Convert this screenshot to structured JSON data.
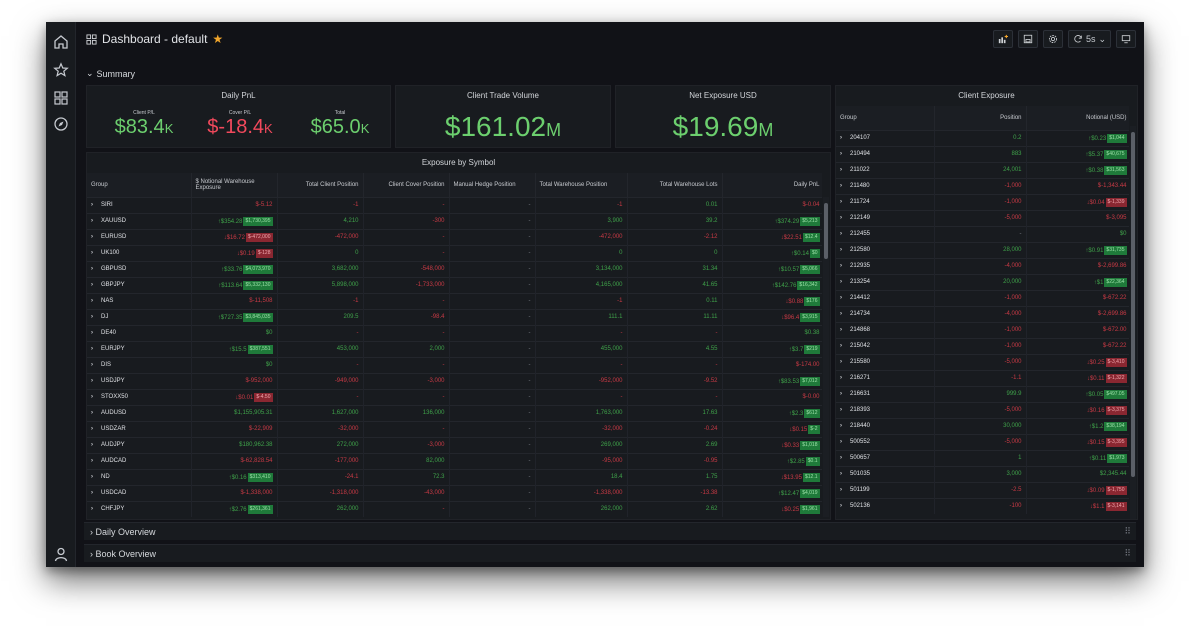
{
  "dashboard": {
    "title": "Dashboard - default"
  },
  "toolbar": {
    "refresh_interval": "5s"
  },
  "sections": {
    "summary": "Summary",
    "daily_overview": "Daily Overview",
    "book_overview": "Book Overview"
  },
  "daily_pnl": {
    "title": "Daily PnL",
    "client_label": "Client P/L",
    "client_value": "$83.4",
    "client_unit": "K",
    "cover_label": "Cover P/L",
    "cover_value": "$-18.4",
    "cover_unit": "K",
    "total_label": "Total",
    "total_value": "$65.0",
    "total_unit": "K"
  },
  "trade_volume": {
    "title": "Client Trade Volume",
    "value": "$161.02",
    "unit": "M"
  },
  "net_exposure": {
    "title": "Net Exposure USD",
    "value": "$19.69",
    "unit": "M"
  },
  "exposure_by_symbol": {
    "title": "Exposure by Symbol",
    "columns": [
      "Group",
      "$ Notional Warehouse Exposure",
      "Total Client Position",
      "Client Cover Position",
      "Manual Hedge Position",
      "Total Warehouse Position",
      "Total Warehouse Lots",
      "Daily PnL"
    ],
    "rows": [
      {
        "name": "SIRI",
        "notional": "$-5.12",
        "nsign": "neg",
        "bar": "",
        "client_pos": "-1",
        "cover_pos": "-",
        "hedge": "-",
        "wh_pos": "-1",
        "lots": "0.01",
        "pnl": "$-0.04",
        "pnl_bar": ""
      },
      {
        "name": "XAUUSD",
        "notional": "↑$354.28",
        "nsign": "pos",
        "bar": "$1,730,395",
        "client_pos": "4,210",
        "cover_pos": "-300",
        "hedge": "-",
        "wh_pos": "3,900",
        "lots": "39.2",
        "pnl": "↑$374.29",
        "pnl_bar": "$5,213"
      },
      {
        "name": "EURUSD",
        "notional": "↓$16.72",
        "nsign": "neg",
        "bar": "$-472,000",
        "client_pos": "-472,000",
        "cover_pos": "-",
        "hedge": "-",
        "wh_pos": "-472,000",
        "lots": "-2.12",
        "pnl": "↓$22.51",
        "pnl_bar": "$12.4"
      },
      {
        "name": "UK100",
        "notional": "↓$0.19",
        "nsign": "neg",
        "bar": "$-128",
        "client_pos": "0",
        "cover_pos": "-",
        "hedge": "-",
        "wh_pos": "0",
        "lots": "0",
        "pnl": "↑$0.14",
        "pnl_bar": "$0"
      },
      {
        "name": "GBPUSD",
        "notional": "↑$33.76",
        "nsign": "pos",
        "bar": "$4,073,970",
        "client_pos": "3,682,000",
        "cover_pos": "-548,000",
        "hedge": "-",
        "wh_pos": "3,134,000",
        "lots": "31.34",
        "pnl": "↑$10.57",
        "pnl_bar": "$5,066"
      },
      {
        "name": "GBPJPY",
        "notional": "↑$113.64",
        "nsign": "pos",
        "bar": "$5,332,130",
        "client_pos": "5,898,000",
        "cover_pos": "-1,733,000",
        "hedge": "-",
        "wh_pos": "4,165,000",
        "lots": "41.65",
        "pnl": "↑$142.76",
        "pnl_bar": "$16,342"
      },
      {
        "name": "NAS",
        "notional": "$-11,508",
        "nsign": "neg",
        "bar": "",
        "client_pos": "-1",
        "cover_pos": "-",
        "hedge": "-",
        "wh_pos": "-1",
        "lots": "0.11",
        "pnl": "↓$0.88",
        "pnl_bar": "$176"
      },
      {
        "name": "DJ",
        "notional": "↑$727.35",
        "nsign": "pos",
        "bar": "$3,845,035",
        "client_pos": "209.5",
        "cover_pos": "-98.4",
        "hedge": "-",
        "wh_pos": "111.1",
        "lots": "11.11",
        "pnl": "↓$96.4",
        "pnl_bar": "$3,915"
      },
      {
        "name": "DE40",
        "notional": "$0",
        "nsign": "pos",
        "bar": "",
        "client_pos": "-",
        "cover_pos": "-",
        "hedge": "-",
        "wh_pos": "-",
        "lots": "-",
        "pnl": "$0.38",
        "pnl_bar": ""
      },
      {
        "name": "EURJPY",
        "notional": "↑$15.5",
        "nsign": "pos",
        "bar": "$387,551",
        "client_pos": "453,000",
        "cover_pos": "2,000",
        "hedge": "-",
        "wh_pos": "455,000",
        "lots": "4.55",
        "pnl": "↑$3.7",
        "pnl_bar": "$219"
      },
      {
        "name": "DIS",
        "notional": "$0",
        "nsign": "pos",
        "bar": "",
        "client_pos": "-",
        "cover_pos": "-",
        "hedge": "-",
        "wh_pos": "-",
        "lots": "-",
        "pnl": "$-174.00",
        "pnl_bar": ""
      },
      {
        "name": "USDJPY",
        "notional": "$-952,000",
        "nsign": "neg",
        "bar": "",
        "client_pos": "-949,000",
        "cover_pos": "-3,000",
        "hedge": "-",
        "wh_pos": "-952,000",
        "lots": "-9.52",
        "pnl": "↑$83.53",
        "pnl_bar": "$7,012"
      },
      {
        "name": "STOXX50",
        "notional": "↓$0.01",
        "nsign": "neg",
        "bar": "$-4.50",
        "client_pos": "-",
        "cover_pos": "-",
        "hedge": "-",
        "wh_pos": "-",
        "lots": "-",
        "pnl": "$-0.00",
        "pnl_bar": ""
      },
      {
        "name": "AUDUSD",
        "notional": "$1,155,905.31",
        "nsign": "pos",
        "bar": "",
        "client_pos": "1,627,000",
        "cover_pos": "136,000",
        "hedge": "-",
        "wh_pos": "1,763,000",
        "lots": "17.63",
        "pnl": "↑$2.3",
        "pnl_bar": "$612"
      },
      {
        "name": "USDZAR",
        "notional": "$-22,909",
        "nsign": "neg",
        "bar": "",
        "client_pos": "-32,000",
        "cover_pos": "-",
        "hedge": "-",
        "wh_pos": "-32,000",
        "lots": "-0.24",
        "pnl": "↓$0.15",
        "pnl_bar": "$-2"
      },
      {
        "name": "AUDJPY",
        "notional": "$180,962.38",
        "nsign": "pos",
        "bar": "",
        "client_pos": "272,000",
        "cover_pos": "-3,000",
        "hedge": "-",
        "wh_pos": "269,000",
        "lots": "2.69",
        "pnl": "↓$0.33",
        "pnl_bar": "$1,018"
      },
      {
        "name": "AUDCAD",
        "notional": "$-62,828.54",
        "nsign": "neg",
        "bar": "",
        "client_pos": "-177,000",
        "cover_pos": "82,000",
        "hedge": "-",
        "wh_pos": "-95,000",
        "lots": "-0.95",
        "pnl": "↑$2.85",
        "pnl_bar": "$0.1"
      },
      {
        "name": "ND",
        "notional": "↑$0.16",
        "nsign": "pos",
        "bar": "$313,410",
        "client_pos": "-24.1",
        "cover_pos": "72.3",
        "hedge": "-",
        "wh_pos": "18.4",
        "lots": "1.75",
        "pnl": "↓$13.95",
        "pnl_bar": "$12.1"
      },
      {
        "name": "USDCAD",
        "notional": "$-1,338,000",
        "nsign": "neg",
        "bar": "",
        "client_pos": "-1,318,000",
        "cover_pos": "-43,000",
        "hedge": "-",
        "wh_pos": "-1,338,000",
        "lots": "-13.38",
        "pnl": "↑$12.47",
        "pnl_bar": "$4,019"
      },
      {
        "name": "CHFJPY",
        "notional": "↑$2.76",
        "nsign": "pos",
        "bar": "$261,361",
        "client_pos": "262,000",
        "cover_pos": "-",
        "hedge": "-",
        "wh_pos": "262,000",
        "lots": "2.62",
        "pnl": "↓$0.25",
        "pnl_bar": "$1,961"
      }
    ]
  },
  "client_exposure": {
    "title": "Client Exposure",
    "columns": [
      "Group",
      "Position",
      "Notional (USD)"
    ],
    "rows": [
      {
        "name": "204107",
        "pos": "0.2",
        "psign": "pos",
        "notional": "↑$0.23",
        "bar": "$1,044"
      },
      {
        "name": "210494",
        "pos": "883",
        "psign": "pos",
        "notional": "↑$5.37",
        "bar": "$40,675"
      },
      {
        "name": "211022",
        "pos": "24,001",
        "psign": "pos",
        "notional": "↑$0.38",
        "bar": "$31,563"
      },
      {
        "name": "211480",
        "pos": "-1,000",
        "psign": "neg",
        "notional": "$-1,343.44",
        "bar": ""
      },
      {
        "name": "211724",
        "pos": "-1,000",
        "psign": "neg",
        "notional": "↓$0.04",
        "bar": "$-1,339"
      },
      {
        "name": "212149",
        "pos": "-5,000",
        "psign": "neg",
        "notional": "$-3,095",
        "bar": ""
      },
      {
        "name": "212455",
        "pos": "-",
        "psign": "muted",
        "notional": "$0",
        "bar": ""
      },
      {
        "name": "212580",
        "pos": "28,000",
        "psign": "pos",
        "notional": "↑$0.91",
        "bar": "$31,735"
      },
      {
        "name": "212935",
        "pos": "-4,000",
        "psign": "neg",
        "notional": "$-2,699.86",
        "bar": ""
      },
      {
        "name": "213254",
        "pos": "20,000",
        "psign": "pos",
        "notional": "↑$1",
        "bar": "$22,364"
      },
      {
        "name": "214412",
        "pos": "-1,000",
        "psign": "neg",
        "notional": "$-672.22",
        "bar": ""
      },
      {
        "name": "214734",
        "pos": "-4,000",
        "psign": "neg",
        "notional": "$-2,699.86",
        "bar": ""
      },
      {
        "name": "214868",
        "pos": "-1,000",
        "psign": "neg",
        "notional": "$-672.00",
        "bar": ""
      },
      {
        "name": "215042",
        "pos": "-1,000",
        "psign": "neg",
        "notional": "$-672.22",
        "bar": ""
      },
      {
        "name": "215580",
        "pos": "-5,000",
        "psign": "neg",
        "notional": "↓$0.25",
        "bar": "$-3,410"
      },
      {
        "name": "216271",
        "pos": "-1.1",
        "psign": "neg",
        "notional": "↓$0.11",
        "bar": "$-1,322"
      },
      {
        "name": "216631",
        "pos": "999.9",
        "psign": "pos",
        "notional": "↑$0.05",
        "bar": "$497.05"
      },
      {
        "name": "218393",
        "pos": "-5,000",
        "psign": "neg",
        "notional": "↓$0.16",
        "bar": "$-3,375"
      },
      {
        "name": "218440",
        "pos": "30,000",
        "psign": "pos",
        "notional": "↑$1.2",
        "bar": "$38,194"
      },
      {
        "name": "500552",
        "pos": "-5,000",
        "psign": "neg",
        "notional": "↓$0.15",
        "bar": "$-3,395"
      },
      {
        "name": "500657",
        "pos": "1",
        "psign": "pos",
        "notional": "↑$0.11",
        "bar": "$1,973"
      },
      {
        "name": "501035",
        "pos": "3,000",
        "psign": "pos",
        "notional": "$2,345.44",
        "bar": ""
      },
      {
        "name": "501199",
        "pos": "-2.5",
        "psign": "neg",
        "notional": "↓$0.09",
        "bar": "$-1,750"
      },
      {
        "name": "502136",
        "pos": "-100",
        "psign": "neg",
        "notional": "↓$1.1",
        "bar": "$-3,141"
      }
    ]
  }
}
